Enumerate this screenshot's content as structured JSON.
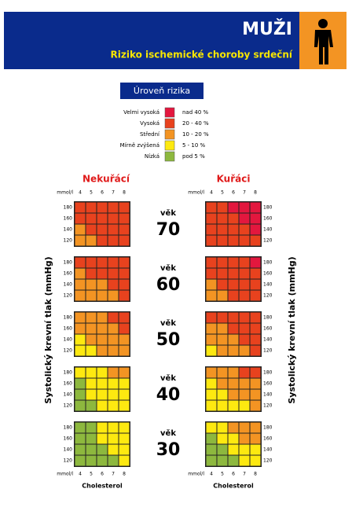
{
  "header": {
    "title": "MUŽI",
    "subtitle": "Riziko ischemické choroby srdeční"
  },
  "legend": {
    "title": "Úroveň rizika",
    "items": [
      {
        "label": "Velmi vysoká",
        "range": "nad 40 %",
        "color": "#e3173e"
      },
      {
        "label": "Vysoká",
        "range": "20 - 40 %",
        "color": "#e8421e"
      },
      {
        "label": "Střední",
        "range": "10 - 20 %",
        "color": "#f39423"
      },
      {
        "label": "Mírně zvýšená",
        "range": "5 - 10 %",
        "color": "#fde910"
      },
      {
        "label": "Nízká",
        "range": "pod 5 %",
        "color": "#8db83e"
      }
    ]
  },
  "columns": {
    "nonsmokers": "Nekuřácí",
    "smokers": "Kuřáci"
  },
  "axis": {
    "y_label": "Systolický krevní tlak (mmHg)",
    "x_label": "Cholesterol",
    "unit": "mmol/l",
    "age_word": "věk",
    "cholesterol_ticks": [
      "4",
      "5",
      "6",
      "7",
      "8"
    ],
    "pressure_ticks": [
      "180",
      "160",
      "140",
      "120"
    ]
  },
  "groups": [
    {
      "age": "70",
      "nonsmokers": [
        [
          "#e8421e",
          "#e8421e",
          "#e8421e",
          "#e8421e",
          "#e8421e"
        ],
        [
          "#e8421e",
          "#e8421e",
          "#e8421e",
          "#e8421e",
          "#e8421e"
        ],
        [
          "#f39423",
          "#e8421e",
          "#e8421e",
          "#e8421e",
          "#e8421e"
        ],
        [
          "#f39423",
          "#f39423",
          "#e8421e",
          "#e8421e",
          "#e8421e"
        ]
      ],
      "smokers": [
        [
          "#e8421e",
          "#e8421e",
          "#e3173e",
          "#e3173e",
          "#e3173e"
        ],
        [
          "#e8421e",
          "#e8421e",
          "#e8421e",
          "#e3173e",
          "#e3173e"
        ],
        [
          "#e8421e",
          "#e8421e",
          "#e8421e",
          "#e8421e",
          "#e3173e"
        ],
        [
          "#e8421e",
          "#e8421e",
          "#e8421e",
          "#e8421e",
          "#e8421e"
        ]
      ]
    },
    {
      "age": "60",
      "nonsmokers": [
        [
          "#e8421e",
          "#e8421e",
          "#e8421e",
          "#e8421e",
          "#e8421e"
        ],
        [
          "#f39423",
          "#e8421e",
          "#e8421e",
          "#e8421e",
          "#e8421e"
        ],
        [
          "#f39423",
          "#f39423",
          "#f39423",
          "#e8421e",
          "#e8421e"
        ],
        [
          "#f39423",
          "#f39423",
          "#f39423",
          "#f39423",
          "#e8421e"
        ]
      ],
      "smokers": [
        [
          "#e8421e",
          "#e8421e",
          "#e8421e",
          "#e8421e",
          "#e3173e"
        ],
        [
          "#e8421e",
          "#e8421e",
          "#e8421e",
          "#e8421e",
          "#e8421e"
        ],
        [
          "#f39423",
          "#e8421e",
          "#e8421e",
          "#e8421e",
          "#e8421e"
        ],
        [
          "#f39423",
          "#f39423",
          "#e8421e",
          "#e8421e",
          "#e8421e"
        ]
      ]
    },
    {
      "age": "50",
      "nonsmokers": [
        [
          "#f39423",
          "#f39423",
          "#f39423",
          "#e8421e",
          "#e8421e"
        ],
        [
          "#f39423",
          "#f39423",
          "#f39423",
          "#f39423",
          "#e8421e"
        ],
        [
          "#fde910",
          "#f39423",
          "#f39423",
          "#f39423",
          "#f39423"
        ],
        [
          "#fde910",
          "#fde910",
          "#f39423",
          "#f39423",
          "#f39423"
        ]
      ],
      "smokers": [
        [
          "#e8421e",
          "#e8421e",
          "#e8421e",
          "#e8421e",
          "#e8421e"
        ],
        [
          "#f39423",
          "#f39423",
          "#e8421e",
          "#e8421e",
          "#e8421e"
        ],
        [
          "#f39423",
          "#f39423",
          "#f39423",
          "#e8421e",
          "#e8421e"
        ],
        [
          "#fde910",
          "#f39423",
          "#f39423",
          "#f39423",
          "#e8421e"
        ]
      ]
    },
    {
      "age": "40",
      "nonsmokers": [
        [
          "#fde910",
          "#fde910",
          "#fde910",
          "#f39423",
          "#f39423"
        ],
        [
          "#8db83e",
          "#fde910",
          "#fde910",
          "#fde910",
          "#fde910"
        ],
        [
          "#8db83e",
          "#fde910",
          "#fde910",
          "#fde910",
          "#fde910"
        ],
        [
          "#8db83e",
          "#8db83e",
          "#fde910",
          "#fde910",
          "#fde910"
        ]
      ],
      "smokers": [
        [
          "#f39423",
          "#f39423",
          "#f39423",
          "#e8421e",
          "#e8421e"
        ],
        [
          "#fde910",
          "#f39423",
          "#f39423",
          "#f39423",
          "#f39423"
        ],
        [
          "#fde910",
          "#fde910",
          "#f39423",
          "#f39423",
          "#f39423"
        ],
        [
          "#fde910",
          "#fde910",
          "#fde910",
          "#fde910",
          "#f39423"
        ]
      ]
    },
    {
      "age": "30",
      "nonsmokers": [
        [
          "#8db83e",
          "#8db83e",
          "#fde910",
          "#fde910",
          "#fde910"
        ],
        [
          "#8db83e",
          "#8db83e",
          "#fde910",
          "#fde910",
          "#fde910"
        ],
        [
          "#8db83e",
          "#8db83e",
          "#8db83e",
          "#fde910",
          "#fde910"
        ],
        [
          "#8db83e",
          "#8db83e",
          "#8db83e",
          "#8db83e",
          "#fde910"
        ]
      ],
      "smokers": [
        [
          "#fde910",
          "#fde910",
          "#f39423",
          "#f39423",
          "#f39423"
        ],
        [
          "#8db83e",
          "#fde910",
          "#fde910",
          "#f39423",
          "#f39423"
        ],
        [
          "#8db83e",
          "#8db83e",
          "#fde910",
          "#fde910",
          "#fde910"
        ],
        [
          "#8db83e",
          "#8db83e",
          "#8db83e",
          "#fde910",
          "#fde910"
        ]
      ]
    }
  ]
}
